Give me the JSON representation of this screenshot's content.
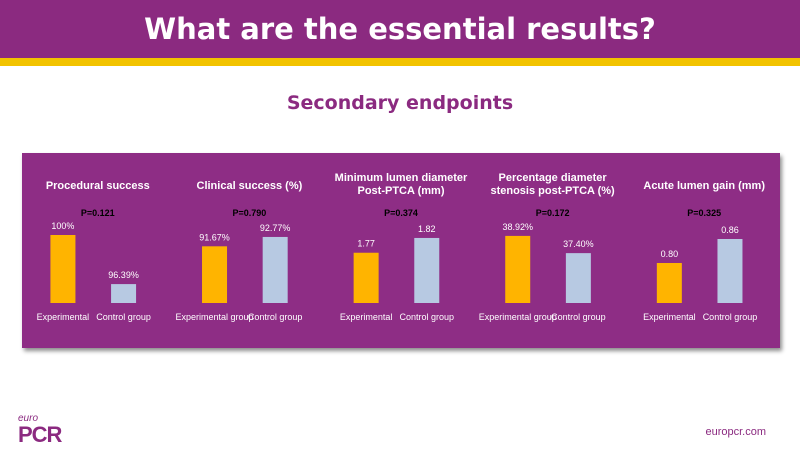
{
  "header": {
    "title": "What are the essential results?"
  },
  "subtitle": "Secondary endpoints",
  "colors": {
    "brand": "#8b2a80",
    "accent": "#f2c300",
    "experimental": "#ffb400",
    "control": "#b7c9e2"
  },
  "footer": {
    "logo_small": "euro",
    "logo_main": "PCR",
    "site": "europcr.com"
  },
  "chart_data": [
    {
      "type": "bar",
      "title": "Procedural success",
      "pvalue": "P=0.121",
      "categories": [
        "Experimental",
        "Control group"
      ],
      "values": [
        100,
        96.39
      ],
      "labels": [
        "100%",
        "96.39%"
      ],
      "ylim": [
        95,
        100
      ]
    },
    {
      "type": "bar",
      "title": "Clinical success (%)",
      "pvalue": "P=0.790",
      "categories": [
        "Experimental group",
        "Control group"
      ],
      "values": [
        91.67,
        92.77
      ],
      "labels": [
        "91.67%",
        "92.77%"
      ],
      "ylim": [
        85,
        93
      ]
    },
    {
      "type": "bar",
      "title": "Minimum lumen diameter Post-PTCA (mm)",
      "pvalue": "P=0.374",
      "categories": [
        "Experimental",
        "Control group"
      ],
      "values": [
        1.77,
        1.82
      ],
      "labels": [
        "1.77",
        "1.82"
      ],
      "ylim": [
        1.6,
        1.83
      ]
    },
    {
      "type": "bar",
      "title": "Percentage diameter stenosis post-PTCA (%)",
      "pvalue": "P=0.172",
      "categories": [
        "Experimental group",
        "Control group"
      ],
      "values": [
        38.92,
        37.4
      ],
      "labels": [
        "38.92%",
        "37.40%"
      ],
      "ylim": [
        33,
        39
      ]
    },
    {
      "type": "bar",
      "title": "Acute lumen gain (mm)",
      "pvalue": "P=0.325",
      "categories": [
        "Experimental",
        "Control group"
      ],
      "values": [
        0.8,
        0.86
      ],
      "labels": [
        "0.80",
        "0.86"
      ],
      "ylim": [
        0.7,
        0.87
      ]
    }
  ]
}
